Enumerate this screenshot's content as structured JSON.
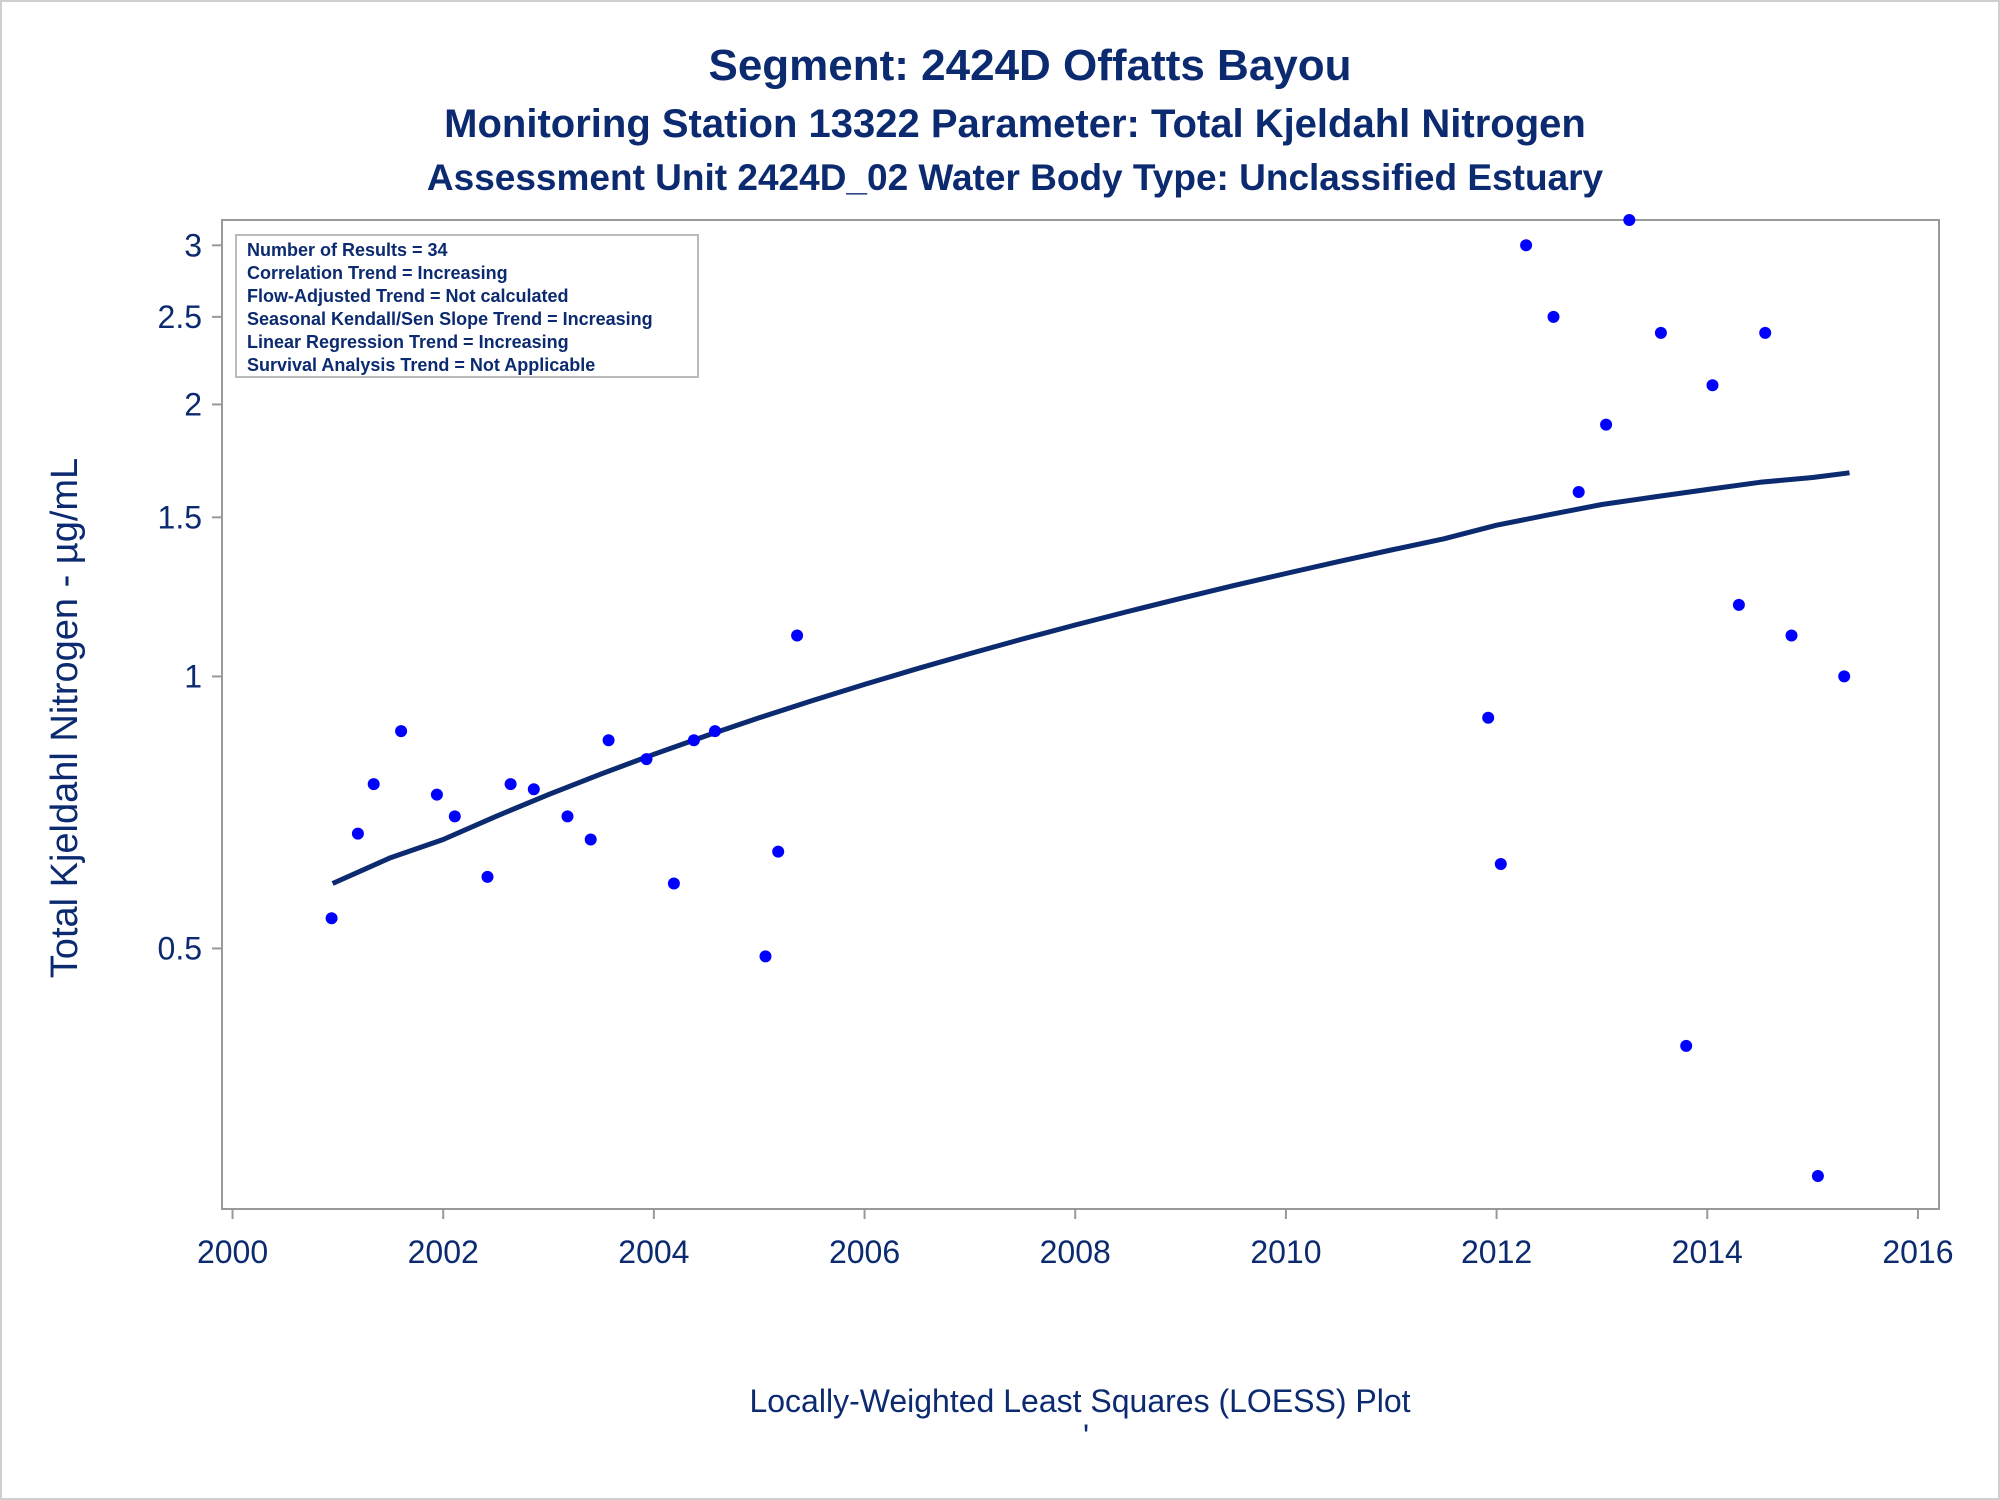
{
  "chart_data": {
    "type": "scatter",
    "title": "Segment: 2424D  Offatts Bayou",
    "subtitle": "Monitoring Station 13322 Parameter: Total Kjeldahl Nitrogen",
    "subtitle2": "Assessment Unit 2424D_02   Water Body Type: Unclassified Estuary",
    "xlabel": "",
    "ylabel": "Total Kjeldahl Nitrogen -  µg/mL",
    "footnote": "Locally-Weighted Least Squares (LOESS) Plot",
    "footnote_mark": "'",
    "x_scale": "linear",
    "y_scale": "log",
    "xlim": [
      1999.9,
      2016.2
    ],
    "ylim": [
      0.2574,
      3.1999
    ],
    "x_ticks": [
      2000,
      2002,
      2004,
      2006,
      2008,
      2010,
      2012,
      2014,
      2016
    ],
    "x_tick_labels": [
      "2000",
      "2002",
      "2004",
      "2006",
      "2008",
      "2010",
      "2012",
      "2014",
      "2016"
    ],
    "y_ticks": [
      0.5,
      1,
      1.5,
      2,
      2.5,
      3
    ],
    "y_tick_labels": [
      "0.5",
      "1",
      "1.5",
      "2",
      "2.5",
      "3"
    ],
    "grid": false,
    "legend": "none",
    "stats_box": [
      "Number of Results = 34",
      "Correlation Trend = Increasing",
      "Flow-Adjusted Trend = Not calculated",
      "Seasonal Kendall/Sen Slope Trend = Increasing",
      "Linear Regression Trend = Increasing",
      "Survival Analysis Trend = Not Applicable"
    ],
    "stats_box_position": "top-left",
    "colors": {
      "points": "#0000ff",
      "loess_line": "#0b2a6f",
      "text": "#0b2a6f",
      "axis": "#999999"
    },
    "series": [
      {
        "kind": "points",
        "x": [
          2000.94,
          2001.19,
          2001.34,
          2001.6,
          2001.94,
          2002.11,
          2002.42,
          2002.64,
          2002.86,
          2003.18,
          2003.4,
          2003.57,
          2003.93,
          2004.19,
          2004.38,
          2004.58,
          2005.06,
          2005.18,
          2005.36,
          2011.92,
          2012.04,
          2012.28,
          2012.54,
          2012.78,
          2013.04,
          2013.26,
          2013.56,
          2013.8,
          2014.05,
          2014.3,
          2014.55,
          2014.8,
          2015.05,
          2015.3
        ],
        "y": [
          0.54,
          0.67,
          0.76,
          0.87,
          0.74,
          0.7,
          0.6,
          0.76,
          0.75,
          0.7,
          0.66,
          0.85,
          0.81,
          0.59,
          0.85,
          0.87,
          0.49,
          0.64,
          1.11,
          0.9,
          0.62,
          3.0,
          2.5,
          1.6,
          1.9,
          3.2,
          2.4,
          0.39,
          2.1,
          1.2,
          2.4,
          1.11,
          0.28,
          1.0
        ]
      },
      {
        "kind": "loess",
        "x": [
          2000.95,
          2001.5,
          2002.0,
          2002.5,
          2003.0,
          2003.5,
          2004.0,
          2004.5,
          2005.0,
          2005.5,
          2006.0,
          2006.5,
          2007.0,
          2007.5,
          2008.0,
          2008.5,
          2009.0,
          2009.5,
          2010.0,
          2010.5,
          2011.0,
          2011.5,
          2012.0,
          2012.5,
          2013.0,
          2013.5,
          2014.0,
          2014.5,
          2015.0,
          2015.35
        ],
        "y": [
          0.59,
          0.63,
          0.66,
          0.7,
          0.74,
          0.78,
          0.82,
          0.86,
          0.9,
          0.94,
          0.98,
          1.02,
          1.06,
          1.1,
          1.14,
          1.18,
          1.22,
          1.26,
          1.3,
          1.34,
          1.38,
          1.42,
          1.47,
          1.51,
          1.55,
          1.58,
          1.61,
          1.64,
          1.66,
          1.68
        ]
      }
    ]
  }
}
